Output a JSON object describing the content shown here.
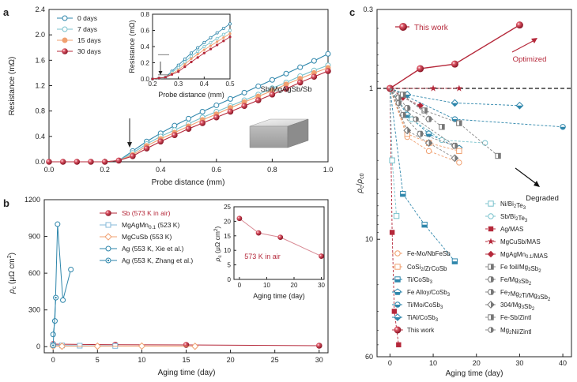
{
  "colors": {
    "d0": "#2e86ab",
    "d7": "#79c2cc",
    "d15": "#f0a070",
    "d30": "#b5283a",
    "ag": "#2e86ab",
    "mgagmn": "#86b8d8",
    "mgcusb": "#f0a070",
    "sb": "#b5283a"
  },
  "chart_data": [
    {
      "panel": "a",
      "type": "line",
      "xlabel": "Probe distance (mm)",
      "ylabel": "Resistance (mΩ)",
      "xlim": [
        0,
        1.0
      ],
      "ylim": [
        0,
        2.4
      ],
      "xticks": [
        "0.0",
        "0.2",
        "0.4",
        "0.6",
        "0.8",
        "1.0"
      ],
      "yticks": [
        "0.0",
        "0.4",
        "0.8",
        "1.2",
        "1.6",
        "2.0",
        "2.4"
      ],
      "legend_position": "top-left",
      "series": [
        {
          "name": "0 days",
          "color_key": "d0",
          "filled": false,
          "x": [
            0,
            0.05,
            0.1,
            0.15,
            0.2,
            0.25,
            0.3,
            0.35,
            0.4,
            0.45,
            0.5,
            0.55,
            0.6,
            0.65,
            0.7,
            0.75,
            0.8,
            0.85,
            0.9,
            0.95,
            1.0
          ],
          "y": [
            0,
            0,
            0,
            0,
            0,
            0.02,
            0.17,
            0.32,
            0.45,
            0.57,
            0.68,
            0.79,
            0.89,
            0.99,
            1.09,
            1.19,
            1.29,
            1.39,
            1.49,
            1.59,
            1.7
          ]
        },
        {
          "name": "7 days",
          "color_key": "d7",
          "filled": false,
          "x": [
            0,
            0.05,
            0.1,
            0.15,
            0.2,
            0.25,
            0.3,
            0.35,
            0.4,
            0.45,
            0.5,
            0.55,
            0.6,
            0.65,
            0.7,
            0.75,
            0.8,
            0.85,
            0.9,
            0.95,
            1.0
          ],
          "y": [
            0,
            0,
            0,
            0,
            0,
            0.02,
            0.14,
            0.28,
            0.4,
            0.5,
            0.6,
            0.7,
            0.79,
            0.88,
            0.97,
            1.06,
            1.16,
            1.25,
            1.35,
            1.44,
            1.52
          ]
        },
        {
          "name": "15 days",
          "color_key": "d15",
          "filled": true,
          "x": [
            0,
            0.05,
            0.1,
            0.15,
            0.2,
            0.25,
            0.3,
            0.35,
            0.4,
            0.45,
            0.5,
            0.55,
            0.6,
            0.65,
            0.7,
            0.75,
            0.8,
            0.85,
            0.9,
            0.95,
            1.0
          ],
          "y": [
            0,
            0,
            0,
            0,
            0,
            0.02,
            0.11,
            0.25,
            0.36,
            0.46,
            0.56,
            0.66,
            0.75,
            0.85,
            0.94,
            1.03,
            1.12,
            1.22,
            1.31,
            1.4,
            1.48
          ]
        },
        {
          "name": "30 days",
          "color_key": "d30",
          "filled": true,
          "x": [
            0,
            0.05,
            0.1,
            0.15,
            0.2,
            0.25,
            0.3,
            0.35,
            0.4,
            0.45,
            0.5,
            0.55,
            0.6,
            0.65,
            0.7,
            0.75,
            0.8,
            0.85,
            0.9,
            0.95,
            1.0
          ],
          "y": [
            0,
            0,
            0,
            0,
            0,
            0.02,
            0.09,
            0.21,
            0.32,
            0.42,
            0.52,
            0.61,
            0.7,
            0.79,
            0.88,
            0.97,
            1.06,
            1.15,
            1.25,
            1.34,
            1.43
          ]
        }
      ],
      "annotation": "Sb/MgAgSb/Sb",
      "inset": {
        "xlabel": "Probe distance (mm)",
        "ylabel": "Resistance (mΩ)",
        "xlim": [
          0.2,
          0.5
        ],
        "ylim": [
          0,
          0.8
        ],
        "xticks": [
          "0.2",
          "0.3",
          "0.4",
          "0.5"
        ],
        "yticks": [
          "0.0",
          "0.2",
          "0.4",
          "0.6",
          "0.8"
        ]
      }
    },
    {
      "panel": "b",
      "type": "scatter",
      "xlabel": "Aging time (day)",
      "ylabel": "ρc (μΩ cm²)",
      "xlim": [
        -1,
        31
      ],
      "ylim": [
        -50,
        1200
      ],
      "xticks": [
        "0",
        "5",
        "10",
        "15",
        "20",
        "25",
        "30"
      ],
      "yticks": [
        "0",
        "300",
        "600",
        "900",
        "1200"
      ],
      "legend_position": "top-left",
      "series": [
        {
          "name": "Sb (573 K in air)",
          "color_key": "sb",
          "marker": "sphere",
          "x": [
            0,
            7,
            15,
            30
          ],
          "y": [
            21,
            16,
            14.5,
            8
          ]
        },
        {
          "name": "MgAgMn0.1 (523 K)",
          "color_key": "mgagmn",
          "marker": "square",
          "x": [
            0,
            1,
            3,
            7
          ],
          "y": [
            15,
            10,
            8,
            6
          ]
        },
        {
          "name": "MgCuSb (553 K)",
          "color_key": "mgcusb",
          "marker": "diamond",
          "x": [
            0,
            1,
            5,
            10,
            16
          ],
          "y": [
            5,
            4,
            4,
            5,
            3
          ]
        },
        {
          "name": "Ag (553 K, Xie et al.)",
          "color_key": "ag",
          "marker": "circle",
          "x": [
            0,
            0.2,
            0.5,
            1.1,
            2.0
          ],
          "y": [
            100,
            210,
            1000,
            380,
            630
          ]
        },
        {
          "name": "Ag (553 K, Zhang et al.)",
          "color_key": "ag",
          "marker": "circle-dot",
          "x": [
            0,
            0.3
          ],
          "y": [
            10,
            400
          ]
        }
      ],
      "legend_labels": {
        "l1": "Sb (573 K in air)",
        "l2_main": "MgAgMn",
        "l2_sub": "0.1",
        "l2_tail": " (523 K)",
        "l3": "MgCuSb (553 K)",
        "l4": "Ag (553 K, Xie et al.)",
        "l5": "Ag (553 K, Zhang et al.)"
      },
      "inset": {
        "xlabel": "Aging time (day)",
        "ylabel": "ρc (μΩ cm²)",
        "xlim": [
          -2,
          31
        ],
        "ylim": [
          0,
          25
        ],
        "xticks": [
          "0",
          "10",
          "20",
          "30"
        ],
        "yticks": [
          "0",
          "5",
          "10",
          "15",
          "20",
          "25"
        ],
        "annotation": "573 K in air",
        "x": [
          0,
          7,
          15,
          30
        ],
        "y": [
          21,
          16,
          14.5,
          8
        ]
      }
    },
    {
      "panel": "c",
      "type": "scatter",
      "xlabel": "Aging time (day)",
      "ylabel": "ρc/ρc0",
      "yscale": "log-inverted",
      "xlim": [
        -3,
        42
      ],
      "ylim": [
        0.3,
        60
      ],
      "xticks": [
        "0",
        "10",
        "20",
        "30",
        "40"
      ],
      "yticks": [
        "0.3",
        "1",
        "10",
        "60"
      ],
      "annotations": [
        "This work",
        "Optimized",
        "Degraded"
      ],
      "series": [
        {
          "name": "This work",
          "color": "#b5283a",
          "x": [
            0,
            7,
            15,
            30
          ],
          "y": [
            1,
            0.74,
            0.69,
            0.38
          ]
        },
        {
          "name": "Ag/MAS",
          "color": "#b5283a",
          "x": [
            0,
            0.5,
            1,
            2
          ],
          "y": [
            1,
            9,
            30,
            50
          ]
        },
        {
          "name": "MgCuSb/MAS",
          "color": "#b5283a",
          "x": [
            0,
            10,
            16
          ],
          "y": [
            1,
            1,
            1
          ]
        },
        {
          "name": "MgAgMn0.1/MAS",
          "color": "#b5283a",
          "x": [
            0,
            3,
            7
          ],
          "y": [
            1,
            1.15,
            1.3
          ]
        },
        {
          "name": "Ti/CoSb3",
          "color": "#2e86ab",
          "x": [
            0,
            3,
            8,
            15
          ],
          "y": [
            1,
            5,
            8,
            14
          ]
        },
        {
          "name": "Fe Alloy/CoSb3",
          "color": "#2e86ab",
          "x": [
            0,
            4,
            9,
            16
          ],
          "y": [
            1,
            1.5,
            2,
            2.5
          ]
        },
        {
          "name": "Ti/Mo/CoSb3",
          "color": "#2e86ab",
          "x": [
            0,
            15,
            40
          ],
          "y": [
            1,
            1.6,
            1.8
          ]
        },
        {
          "name": "TiAl/CoSb3",
          "color": "#2e86ab",
          "x": [
            0,
            4,
            15,
            30
          ],
          "y": [
            1,
            1.1,
            1.25,
            1.3
          ]
        },
        {
          "name": "Ni/Bi2Te3",
          "color": "#79c2cc",
          "x": [
            0,
            0.5,
            1.5
          ],
          "y": [
            1,
            3,
            7
          ]
        },
        {
          "name": "Sb/Bi2Te3",
          "color": "#79c2cc",
          "x": [
            0,
            5,
            12,
            22
          ],
          "y": [
            1,
            1.6,
            2.2,
            2.3
          ]
        },
        {
          "name": "Fe-Mo/NbFeSb",
          "color": "#f0a070",
          "x": [
            0,
            4,
            9,
            16
          ],
          "y": [
            1,
            2.1,
            2.6,
            3.1
          ]
        },
        {
          "name": "CoSi2/ZrCoSb",
          "color": "#f0a070",
          "x": [
            0,
            4,
            9,
            16
          ],
          "y": [
            1,
            2.0,
            2.3,
            2.6
          ]
        },
        {
          "name": "Fe foil/Mg3Sb2",
          "color": "#888888",
          "x": [
            0,
            8,
            16,
            25
          ],
          "y": [
            1,
            1.4,
            1.7,
            2.8
          ]
        },
        {
          "name": "Fe/Mg3Sb2",
          "color": "#888888",
          "x": [
            0,
            3,
            7,
            15
          ],
          "y": [
            1,
            1.5,
            2.0,
            2.4
          ]
        },
        {
          "name": "Fe7Mg2Ti/Mg3Sb2",
          "color": "#888888",
          "x": [
            0,
            2,
            4,
            9
          ],
          "y": [
            1,
            1.15,
            1.35,
            1.6
          ]
        },
        {
          "name": "304/Mg3Sb2",
          "color": "#888888",
          "x": [
            0,
            4,
            9,
            15
          ],
          "y": [
            1,
            1.9,
            2.3,
            2.9
          ]
        },
        {
          "name": "Fe-Sb/Zintl",
          "color": "#888888",
          "x": [
            0,
            3,
            12
          ],
          "y": [
            1,
            1.1,
            1.8
          ]
        },
        {
          "name": "Mg2Ni/Zintl",
          "color": "#888888",
          "x": [
            0,
            2,
            6,
            15
          ],
          "y": [
            1,
            1.25,
            1.6,
            2.4
          ]
        }
      ],
      "legend_labels": [
        {
          "main": "Ni/Bi",
          "sub": "2",
          "mid": "Te",
          "sub2": "3"
        },
        {
          "main": "Sb/Bi",
          "sub": "2",
          "mid": "Te",
          "sub2": "3"
        },
        {
          "main": "Ag/MAS"
        },
        {
          "main": "MgCuSb/MAS"
        },
        {
          "main": "MgAgMn",
          "sub": "0.1",
          "mid": "/MAS"
        },
        {
          "main": "Fe foil/Mg",
          "sub": "3",
          "mid": "Sb",
          "sub2": "2"
        },
        {
          "main": "Fe/Mg",
          "sub": "3",
          "mid": "Sb",
          "sub2": "2"
        },
        {
          "main": "Fe",
          "sub": "7",
          "mid": "Mg",
          "sub2": "2",
          "tail": "Ti/Mg",
          "sub3": "3",
          "tail2": "Sb",
          "sub4": "2"
        },
        {
          "main": "304/Mg",
          "sub": "3",
          "mid": "Sb",
          "sub2": "2"
        },
        {
          "main": "Fe-Sb/Zintl"
        },
        {
          "main": "Mg",
          "sub": "2",
          "mid": "Ni/Zintl"
        },
        {
          "main": "Fe-Mo/NbFeSb"
        },
        {
          "main": "CoSi",
          "sub": "2",
          "mid": "/ZrCoSb"
        },
        {
          "main": "Ti/CoSb",
          "sub": "3"
        },
        {
          "main": "Fe Alloy/CoSb",
          "sub": "3"
        },
        {
          "main": "Ti/Mo/CoSb",
          "sub": "3"
        },
        {
          "main": "TiAl/CoSb",
          "sub": "3"
        },
        {
          "main": "This work"
        }
      ]
    }
  ],
  "labels": {
    "panel_a": "a",
    "panel_b": "b",
    "panel_c": "c"
  }
}
